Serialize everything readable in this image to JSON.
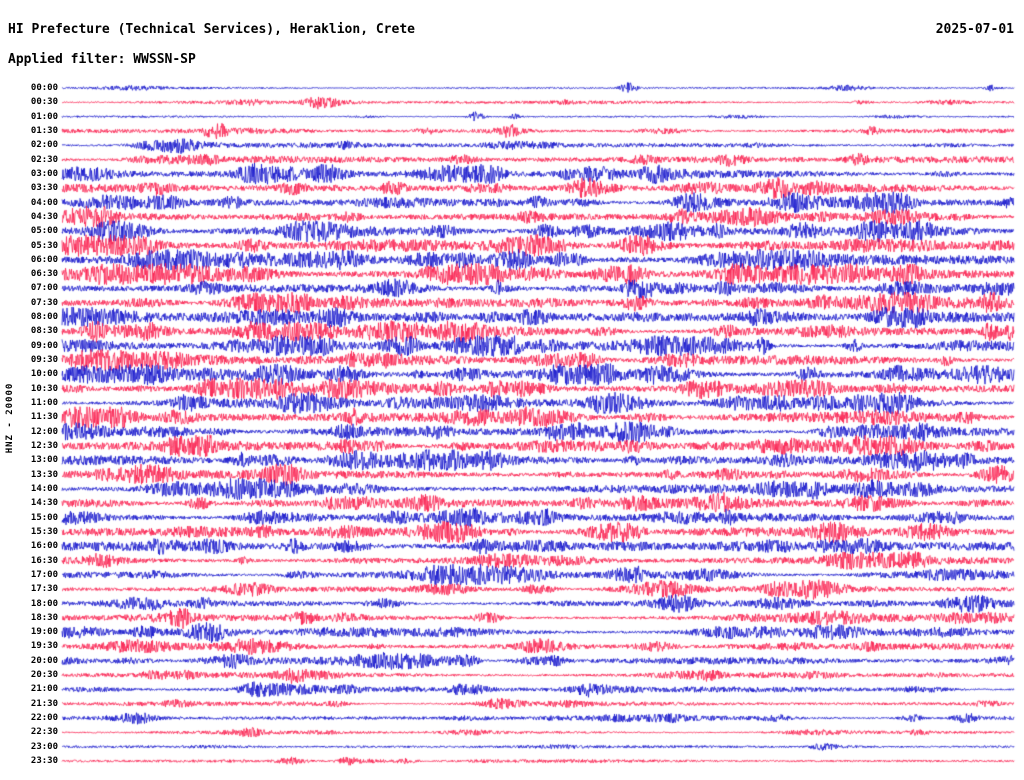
{
  "header": {
    "title": "HI Prefecture (Technical Services), Heraklion, Crete",
    "date": "2025-07-01",
    "filter_label": "Applied filter: WWSSN-SP"
  },
  "axis": {
    "vertical_label": "HNZ - 20000"
  },
  "chart_data": {
    "type": "line",
    "subtype": "helicorder-seismogram",
    "title": "HI Prefecture (Technical Services), Heraklion, Crete",
    "date": "2025-07-01",
    "filter": "WWSSN-SP",
    "channel": "HNZ",
    "scale": 20000,
    "minutes_per_row": 30,
    "legend_position": "none",
    "grid": false,
    "colors": {
      "blue": "#1414cc",
      "red": "#fa1e4e"
    },
    "rows": [
      {
        "t": "00:00",
        "c": "blue",
        "a": 1.2,
        "ev": [
          [
            0.595,
            6,
            5
          ],
          [
            0.975,
            3,
            3
          ]
        ]
      },
      {
        "t": "00:30",
        "c": "red",
        "a": 1.8,
        "ev": [
          [
            0.27,
            10,
            3.5
          ],
          [
            0.84,
            6,
            2
          ]
        ]
      },
      {
        "t": "01:00",
        "c": "blue",
        "a": 1.3,
        "ev": [
          [
            0.435,
            5,
            5
          ],
          [
            0.475,
            4,
            3.2
          ]
        ]
      },
      {
        "t": "01:30",
        "c": "red",
        "a": 2.2,
        "ev": [
          [
            0.16,
            8,
            3.5
          ],
          [
            0.47,
            6,
            3
          ],
          [
            0.85,
            5,
            2.5
          ]
        ]
      },
      {
        "t": "02:00",
        "c": "blue",
        "a": 2.8,
        "ev": [
          [
            0.12,
            10,
            2.5
          ],
          [
            0.3,
            8,
            2
          ]
        ]
      },
      {
        "t": "02:30",
        "c": "red",
        "a": 3.5,
        "ev": [
          [
            0.15,
            12,
            2.2
          ],
          [
            0.42,
            10,
            2
          ],
          [
            0.7,
            8,
            2
          ]
        ]
      },
      {
        "t": "03:00",
        "c": "blue",
        "a": 4.5,
        "ev": [
          [
            0.2,
            10,
            2
          ],
          [
            0.45,
            10,
            2.2
          ],
          [
            0.62,
            8,
            2
          ]
        ]
      },
      {
        "t": "03:30",
        "c": "red",
        "a": 4.5,
        "ev": [
          [
            0.1,
            10,
            2
          ],
          [
            0.35,
            8,
            2
          ],
          [
            0.75,
            10,
            2.2
          ]
        ]
      },
      {
        "t": "04:00",
        "c": "blue",
        "a": 4.5,
        "ev": [
          [
            0.18,
            8,
            2
          ],
          [
            0.5,
            8,
            2
          ],
          [
            0.88,
            8,
            2.2
          ]
        ]
      },
      {
        "t": "04:30",
        "c": "red",
        "a": 4.5,
        "ev": [
          [
            0.3,
            10,
            2
          ],
          [
            0.65,
            8,
            2
          ]
        ]
      },
      {
        "t": "05:00",
        "c": "blue",
        "a": 5.5,
        "ev": [
          [
            0.25,
            10,
            1.8
          ],
          [
            0.55,
            10,
            1.8
          ],
          [
            0.85,
            10,
            2
          ]
        ]
      },
      {
        "t": "05:30",
        "c": "red",
        "a": 5.5,
        "ev": [
          [
            0.2,
            10,
            1.8
          ],
          [
            0.6,
            12,
            1.8
          ]
        ]
      },
      {
        "t": "06:00",
        "c": "blue",
        "a": 5.5,
        "ev": [
          [
            0.4,
            12,
            1.8
          ],
          [
            0.75,
            10,
            1.8
          ]
        ]
      },
      {
        "t": "06:30",
        "c": "red",
        "a": 6.5,
        "ev": [
          [
            0.08,
            14,
            1.8
          ],
          [
            0.5,
            14,
            1.8
          ],
          [
            0.72,
            12,
            1.8
          ]
        ]
      },
      {
        "t": "07:00",
        "c": "blue",
        "a": 5.5,
        "ev": [
          [
            0.15,
            10,
            1.8
          ],
          [
            0.6,
            10,
            1.8
          ]
        ]
      },
      {
        "t": "07:30",
        "c": "red",
        "a": 5.5,
        "ev": [
          [
            0.3,
            10,
            1.8
          ],
          [
            0.8,
            10,
            1.8
          ]
        ]
      },
      {
        "t": "08:00",
        "c": "blue",
        "a": 5.5,
        "ev": [
          [
            0.45,
            10,
            1.8
          ]
        ]
      },
      {
        "t": "08:30",
        "c": "red",
        "a": 5.5,
        "ev": [
          [
            0.2,
            10,
            1.8
          ],
          [
            0.7,
            10,
            1.8
          ]
        ]
      },
      {
        "t": "09:00",
        "c": "blue",
        "a": 5.5,
        "ev": [
          [
            0.35,
            10,
            1.8
          ]
        ]
      },
      {
        "t": "09:30",
        "c": "red",
        "a": 5.0,
        "ev": [
          [
            0.55,
            10,
            1.8
          ]
        ]
      },
      {
        "t": "10:00",
        "c": "blue",
        "a": 5.5,
        "ev": [
          [
            0.1,
            10,
            1.8
          ],
          [
            0.65,
            10,
            1.8
          ]
        ]
      },
      {
        "t": "10:30",
        "c": "red",
        "a": 5.5,
        "ev": [
          [
            0.4,
            10,
            1.8
          ]
        ]
      },
      {
        "t": "11:00",
        "c": "blue",
        "a": 5.5,
        "ev": [
          [
            0.25,
            10,
            1.8
          ],
          [
            0.75,
            10,
            1.8
          ]
        ]
      },
      {
        "t": "11:30",
        "c": "red",
        "a": 5.5,
        "ev": [
          [
            0.5,
            12,
            1.8
          ]
        ]
      },
      {
        "t": "12:00",
        "c": "blue",
        "a": 5.5,
        "ev": [
          [
            0.3,
            10,
            1.8
          ],
          [
            0.85,
            10,
            1.8
          ]
        ]
      },
      {
        "t": "12:30",
        "c": "red",
        "a": 5.5,
        "ev": [
          [
            0.15,
            10,
            1.8
          ],
          [
            0.6,
            12,
            1.8
          ]
        ]
      },
      {
        "t": "13:00",
        "c": "blue",
        "a": 5.5,
        "ev": [
          [
            0.45,
            10,
            1.8
          ]
        ]
      },
      {
        "t": "13:30",
        "c": "red",
        "a": 5.0,
        "ev": [
          [
            0.7,
            10,
            1.8
          ]
        ]
      },
      {
        "t": "14:00",
        "c": "blue",
        "a": 5.0,
        "ev": [
          [
            0.2,
            10,
            1.8
          ]
        ]
      },
      {
        "t": "14:30",
        "c": "red",
        "a": 4.8,
        "ev": [
          [
            0.55,
            10,
            1.8
          ]
        ]
      },
      {
        "t": "15:00",
        "c": "blue",
        "a": 4.8,
        "ev": [
          [
            0.35,
            10,
            1.8
          ]
        ]
      },
      {
        "t": "15:30",
        "c": "red",
        "a": 4.8,
        "ev": [
          [
            0.59,
            12,
            2.2
          ]
        ]
      },
      {
        "t": "16:00",
        "c": "blue",
        "a": 4.8,
        "ev": [
          [
            0.1,
            10,
            1.8
          ],
          [
            0.8,
            10,
            1.8
          ]
        ]
      },
      {
        "t": "16:30",
        "c": "red",
        "a": 4.2,
        "ev": [
          [
            0.45,
            10,
            1.8
          ]
        ]
      },
      {
        "t": "17:00",
        "c": "blue",
        "a": 4.2,
        "ev": [
          [
            0.25,
            10,
            1.8
          ]
        ]
      },
      {
        "t": "17:30",
        "c": "red",
        "a": 4.2,
        "ev": [
          [
            0.5,
            12,
            2
          ]
        ]
      },
      {
        "t": "18:00",
        "c": "blue",
        "a": 4.0,
        "ev": [
          [
            0.65,
            10,
            1.8
          ]
        ]
      },
      {
        "t": "18:30",
        "c": "red",
        "a": 4.0,
        "ev": [
          [
            0.3,
            10,
            1.8
          ]
        ]
      },
      {
        "t": "19:00",
        "c": "blue",
        "a": 4.2,
        "ev": [
          [
            0.15,
            10,
            1.8
          ],
          [
            0.7,
            10,
            1.8
          ]
        ]
      },
      {
        "t": "19:30",
        "c": "red",
        "a": 3.4,
        "ev": [
          [
            0.5,
            10,
            1.8
          ]
        ]
      },
      {
        "t": "20:00",
        "c": "blue",
        "a": 3.8,
        "ev": [
          [
            0.42,
            10,
            2
          ],
          [
            0.52,
            8,
            2
          ]
        ]
      },
      {
        "t": "20:30",
        "c": "red",
        "a": 3.0,
        "ev": [
          [
            0.1,
            10,
            2
          ],
          [
            0.68,
            10,
            2.2
          ]
        ]
      },
      {
        "t": "21:00",
        "c": "blue",
        "a": 3.2,
        "ev": [
          [
            0.3,
            10,
            2
          ],
          [
            0.55,
            8,
            2
          ]
        ]
      },
      {
        "t": "21:30",
        "c": "red",
        "a": 2.4,
        "ev": [
          [
            0.12,
            8,
            2
          ]
        ]
      },
      {
        "t": "22:00",
        "c": "blue",
        "a": 2.8,
        "ev": [
          [
            0.08,
            10,
            2.2
          ],
          [
            0.95,
            8,
            2.5
          ]
        ]
      },
      {
        "t": "22:30",
        "c": "red",
        "a": 1.8,
        "ev": [
          [
            0.2,
            6,
            2
          ]
        ]
      },
      {
        "t": "23:00",
        "c": "blue",
        "a": 1.4,
        "ev": [
          [
            0.8,
            8,
            3.5
          ]
        ]
      },
      {
        "t": "23:30",
        "c": "red",
        "a": 1.8,
        "ev": [
          [
            0.24,
            10,
            3
          ],
          [
            0.3,
            6,
            2.5
          ]
        ]
      }
    ]
  }
}
